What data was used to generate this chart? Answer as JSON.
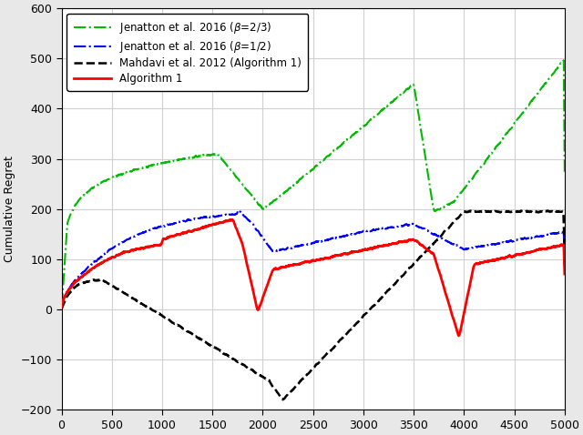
{
  "title": "",
  "xlabel": "",
  "ylabel": "Cumulative Regret",
  "xlim": [
    0,
    5000
  ],
  "ylim": [
    -200,
    600
  ],
  "xticks": [
    0,
    500,
    1000,
    1500,
    2000,
    2500,
    3000,
    3500,
    4000,
    4500,
    5000
  ],
  "yticks": [
    -200,
    -100,
    0,
    100,
    200,
    300,
    400,
    500,
    600
  ],
  "legend": [
    {
      "label": "Algorithm 1",
      "color": "#ff0000",
      "linestyle": "solid",
      "linewidth": 2.0
    },
    {
      "label": "Mahdavi et al. 2012 (Algorithm 1)",
      "color": "#000000",
      "linestyle": "dashed",
      "linewidth": 1.8
    },
    {
      "label": "Jenatton et al. 2016 ($\\beta$=1/2)",
      "color": "#0000ff",
      "linestyle": "dashdot",
      "linewidth": 1.5
    },
    {
      "label": "Jenatton et al. 2016 ($\\beta$=2/3)",
      "color": "#00bb00",
      "linestyle": "dashdot",
      "linewidth": 1.5
    }
  ],
  "T": 5000,
  "background_color": "#ffffff",
  "grid_color": "#d0d0d0",
  "fig_facecolor": "#e8e8e8"
}
